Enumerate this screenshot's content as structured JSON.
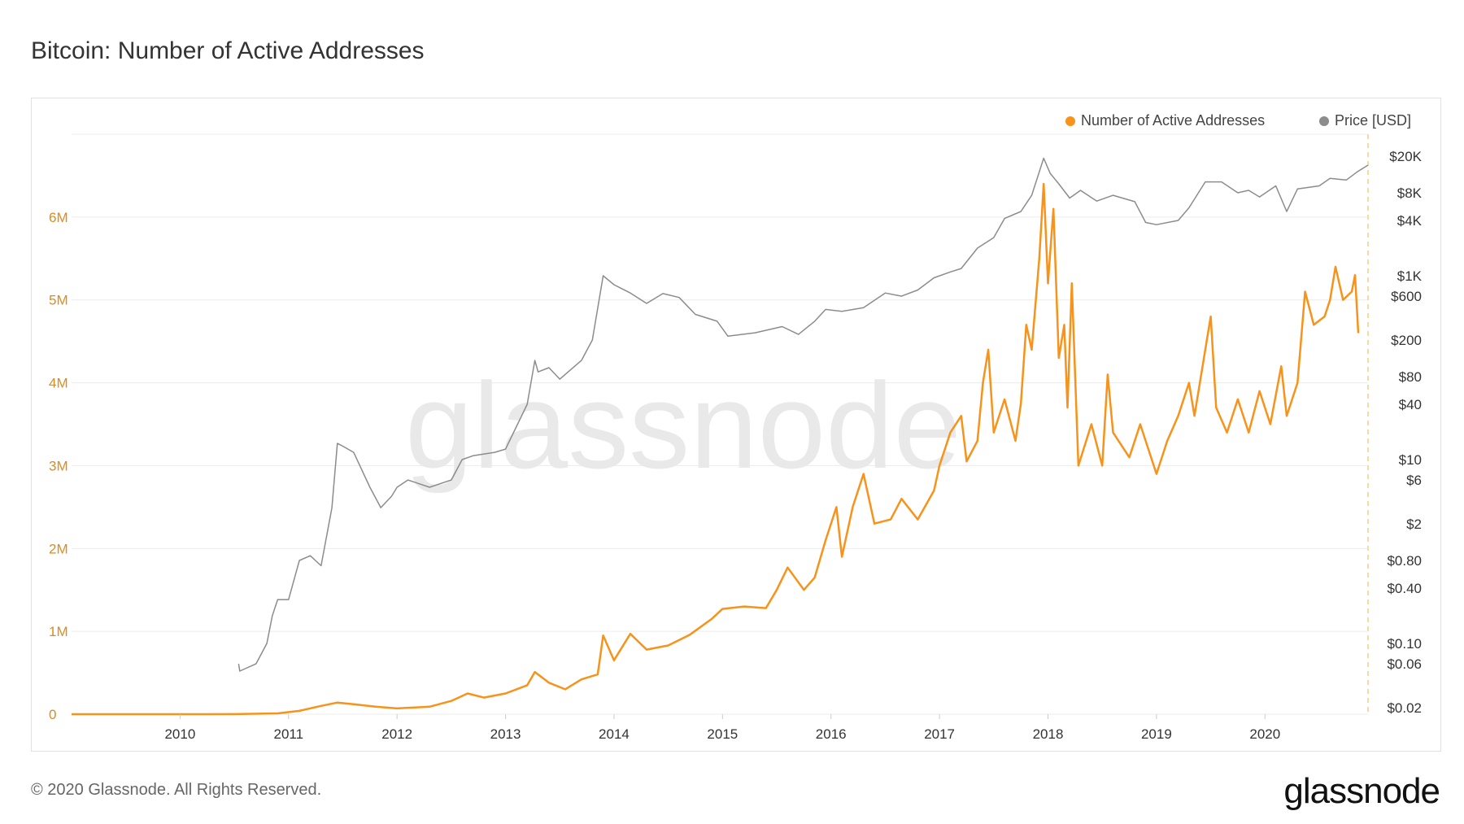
{
  "title": "Bitcoin: Number of Active Addresses",
  "footer": "© 2020 Glassnode. All Rights Reserved.",
  "brand": "glassnode",
  "watermark": "glassnode",
  "colors": {
    "active": "#f7931a",
    "price": "#8c8c8c",
    "axis_left": "#e08a1a",
    "grid": "#ececec"
  },
  "legend": [
    {
      "label": "Number of Active Addresses",
      "color": "#f7931a"
    },
    {
      "label": "Price [USD]",
      "color": "#8c8c8c"
    }
  ],
  "chart_data": {
    "type": "line",
    "title": "Bitcoin: Number of Active Addresses",
    "x_ticks": [
      2010,
      2011,
      2012,
      2013,
      2014,
      2015,
      2016,
      2017,
      2018,
      2019,
      2020
    ],
    "y_left": {
      "ticks": [
        0,
        1000000,
        2000000,
        3000000,
        4000000,
        5000000,
        6000000
      ],
      "labels": [
        "0",
        "1M",
        "2M",
        "3M",
        "4M",
        "5M",
        "6M"
      ],
      "lim": [
        0,
        7000000
      ]
    },
    "y_right": {
      "scale": "log",
      "ticks": [
        0.02,
        0.06,
        0.1,
        0.4,
        0.8,
        2,
        6,
        10,
        40,
        80,
        200,
        600,
        1000,
        4000,
        8000,
        20000
      ],
      "labels": [
        "$0.02",
        "$0.06",
        "$0.10",
        "$0.40",
        "$0.80",
        "$2",
        "$6",
        "$10",
        "$40",
        "$80",
        "$200",
        "$600",
        "$1K",
        "$4K",
        "$8K",
        "$20K"
      ]
    },
    "x_range": [
      2009.0,
      2020.95
    ],
    "series": [
      {
        "name": "Number of Active Addresses",
        "axis": "left",
        "points": [
          [
            2009.0,
            0
          ],
          [
            2010.0,
            0
          ],
          [
            2010.5,
            1000
          ],
          [
            2010.9,
            10000
          ],
          [
            2011.1,
            40000
          ],
          [
            2011.3,
            100000
          ],
          [
            2011.45,
            140000
          ],
          [
            2011.6,
            120000
          ],
          [
            2011.8,
            90000
          ],
          [
            2012.0,
            70000
          ],
          [
            2012.3,
            90000
          ],
          [
            2012.5,
            160000
          ],
          [
            2012.65,
            250000
          ],
          [
            2012.8,
            200000
          ],
          [
            2013.0,
            250000
          ],
          [
            2013.2,
            350000
          ],
          [
            2013.27,
            510000
          ],
          [
            2013.4,
            380000
          ],
          [
            2013.55,
            300000
          ],
          [
            2013.7,
            420000
          ],
          [
            2013.85,
            480000
          ],
          [
            2013.9,
            950000
          ],
          [
            2014.0,
            650000
          ],
          [
            2014.15,
            970000
          ],
          [
            2014.3,
            780000
          ],
          [
            2014.5,
            830000
          ],
          [
            2014.7,
            960000
          ],
          [
            2014.9,
            1150000
          ],
          [
            2015.0,
            1270000
          ],
          [
            2015.2,
            1300000
          ],
          [
            2015.4,
            1280000
          ],
          [
            2015.5,
            1500000
          ],
          [
            2015.6,
            1770000
          ],
          [
            2015.75,
            1500000
          ],
          [
            2015.85,
            1650000
          ],
          [
            2015.95,
            2100000
          ],
          [
            2016.05,
            2500000
          ],
          [
            2016.1,
            1900000
          ],
          [
            2016.2,
            2500000
          ],
          [
            2016.3,
            2900000
          ],
          [
            2016.4,
            2300000
          ],
          [
            2016.55,
            2350000
          ],
          [
            2016.65,
            2600000
          ],
          [
            2016.8,
            2350000
          ],
          [
            2016.95,
            2700000
          ],
          [
            2017.0,
            3000000
          ],
          [
            2017.1,
            3400000
          ],
          [
            2017.2,
            3600000
          ],
          [
            2017.25,
            3050000
          ],
          [
            2017.35,
            3300000
          ],
          [
            2017.4,
            4000000
          ],
          [
            2017.45,
            4400000
          ],
          [
            2017.5,
            3400000
          ],
          [
            2017.6,
            3800000
          ],
          [
            2017.7,
            3300000
          ],
          [
            2017.75,
            3750000
          ],
          [
            2017.8,
            4700000
          ],
          [
            2017.85,
            4400000
          ],
          [
            2017.92,
            5500000
          ],
          [
            2017.96,
            6400000
          ],
          [
            2018.0,
            5200000
          ],
          [
            2018.05,
            6100000
          ],
          [
            2018.1,
            4300000
          ],
          [
            2018.15,
            4700000
          ],
          [
            2018.18,
            3700000
          ],
          [
            2018.22,
            5200000
          ],
          [
            2018.28,
            3000000
          ],
          [
            2018.4,
            3500000
          ],
          [
            2018.5,
            3000000
          ],
          [
            2018.55,
            4100000
          ],
          [
            2018.6,
            3400000
          ],
          [
            2018.75,
            3100000
          ],
          [
            2018.85,
            3500000
          ],
          [
            2019.0,
            2900000
          ],
          [
            2019.1,
            3300000
          ],
          [
            2019.2,
            3600000
          ],
          [
            2019.3,
            4000000
          ],
          [
            2019.35,
            3600000
          ],
          [
            2019.45,
            4400000
          ],
          [
            2019.5,
            4800000
          ],
          [
            2019.55,
            3700000
          ],
          [
            2019.65,
            3400000
          ],
          [
            2019.75,
            3800000
          ],
          [
            2019.85,
            3400000
          ],
          [
            2019.95,
            3900000
          ],
          [
            2020.05,
            3500000
          ],
          [
            2020.15,
            4200000
          ],
          [
            2020.2,
            3600000
          ],
          [
            2020.3,
            4000000
          ],
          [
            2020.37,
            5100000
          ],
          [
            2020.45,
            4700000
          ],
          [
            2020.55,
            4800000
          ],
          [
            2020.6,
            5000000
          ],
          [
            2020.65,
            5400000
          ],
          [
            2020.72,
            5000000
          ],
          [
            2020.8,
            5100000
          ],
          [
            2020.83,
            5300000
          ],
          [
            2020.86,
            4600000
          ]
        ]
      },
      {
        "name": "Price [USD]",
        "axis": "right",
        "points": [
          [
            2010.54,
            0.06
          ],
          [
            2010.55,
            0.05
          ],
          [
            2010.7,
            0.06
          ],
          [
            2010.8,
            0.1
          ],
          [
            2010.85,
            0.2
          ],
          [
            2010.9,
            0.3
          ],
          [
            2011.0,
            0.3
          ],
          [
            2011.1,
            0.8
          ],
          [
            2011.2,
            0.9
          ],
          [
            2011.3,
            0.7
          ],
          [
            2011.4,
            3
          ],
          [
            2011.45,
            15
          ],
          [
            2011.5,
            14
          ],
          [
            2011.6,
            12
          ],
          [
            2011.75,
            5
          ],
          [
            2011.85,
            3
          ],
          [
            2011.95,
            4
          ],
          [
            2012.0,
            5
          ],
          [
            2012.1,
            6
          ],
          [
            2012.3,
            5
          ],
          [
            2012.5,
            6
          ],
          [
            2012.6,
            10
          ],
          [
            2012.7,
            11
          ],
          [
            2012.9,
            12
          ],
          [
            2013.0,
            13
          ],
          [
            2013.2,
            40
          ],
          [
            2013.27,
            120
          ],
          [
            2013.3,
            90
          ],
          [
            2013.4,
            100
          ],
          [
            2013.5,
            75
          ],
          [
            2013.7,
            120
          ],
          [
            2013.8,
            200
          ],
          [
            2013.9,
            1000
          ],
          [
            2014.0,
            800
          ],
          [
            2014.15,
            650
          ],
          [
            2014.3,
            500
          ],
          [
            2014.45,
            640
          ],
          [
            2014.6,
            580
          ],
          [
            2014.75,
            380
          ],
          [
            2014.95,
            320
          ],
          [
            2015.05,
            220
          ],
          [
            2015.3,
            240
          ],
          [
            2015.55,
            280
          ],
          [
            2015.7,
            230
          ],
          [
            2015.85,
            320
          ],
          [
            2015.95,
            430
          ],
          [
            2016.1,
            410
          ],
          [
            2016.3,
            450
          ],
          [
            2016.5,
            650
          ],
          [
            2016.65,
            600
          ],
          [
            2016.8,
            700
          ],
          [
            2016.95,
            950
          ],
          [
            2017.1,
            1100
          ],
          [
            2017.2,
            1200
          ],
          [
            2017.35,
            2000
          ],
          [
            2017.5,
            2600
          ],
          [
            2017.6,
            4200
          ],
          [
            2017.75,
            5000
          ],
          [
            2017.85,
            7500
          ],
          [
            2017.96,
            19000
          ],
          [
            2018.02,
            13000
          ],
          [
            2018.1,
            10000
          ],
          [
            2018.2,
            7000
          ],
          [
            2018.3,
            8500
          ],
          [
            2018.45,
            6500
          ],
          [
            2018.6,
            7500
          ],
          [
            2018.8,
            6400
          ],
          [
            2018.9,
            3800
          ],
          [
            2019.0,
            3600
          ],
          [
            2019.2,
            4000
          ],
          [
            2019.3,
            5500
          ],
          [
            2019.45,
            10500
          ],
          [
            2019.6,
            10500
          ],
          [
            2019.75,
            8000
          ],
          [
            2019.85,
            8500
          ],
          [
            2019.95,
            7200
          ],
          [
            2020.1,
            9500
          ],
          [
            2020.2,
            5000
          ],
          [
            2020.3,
            8800
          ],
          [
            2020.5,
            9500
          ],
          [
            2020.6,
            11500
          ],
          [
            2020.75,
            11000
          ],
          [
            2020.85,
            13500
          ],
          [
            2020.95,
            16000
          ]
        ]
      }
    ]
  }
}
